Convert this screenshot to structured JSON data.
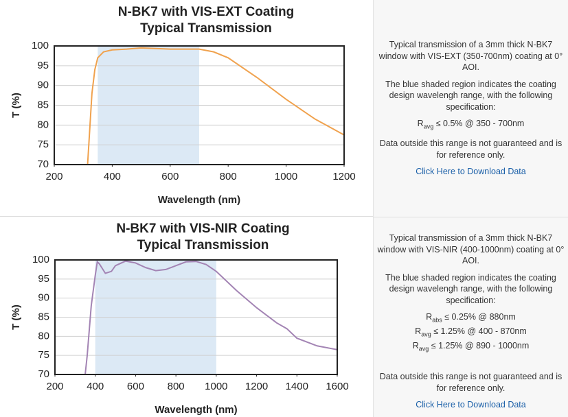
{
  "chart_data": [
    {
      "type": "line",
      "title": "N-BK7 with VIS-EXT Coating",
      "subtitle": "Typical Transmission",
      "x_label": "Wavelength (nm)",
      "y_label": "T (%)",
      "xlim": [
        200,
        1200
      ],
      "xticks": [
        200,
        400,
        600,
        800,
        1000,
        1200
      ],
      "ylim": [
        70,
        100
      ],
      "yticks": [
        70,
        75,
        80,
        85,
        90,
        95,
        100
      ],
      "grid": true,
      "shade": [
        350,
        700
      ],
      "shade_color": "#dce9f5",
      "x": [
        315,
        320,
        330,
        340,
        350,
        370,
        400,
        450,
        500,
        600,
        700,
        750,
        800,
        900,
        1000,
        1100,
        1200
      ],
      "series": [
        {
          "color": "#f0a24e",
          "values": [
            70,
            76,
            88,
            94,
            97,
            98.5,
            99,
            99.2,
            99.5,
            99.2,
            99.2,
            98.5,
            97,
            92,
            86.5,
            81.5,
            77.5
          ]
        }
      ]
    },
    {
      "type": "line",
      "title": "N-BK7 with VIS-NIR Coating",
      "subtitle": "Typical Transmission",
      "x_label": "Wavelength (nm)",
      "y_label": "T (%)",
      "xlim": [
        200,
        1600
      ],
      "xticks": [
        200,
        400,
        600,
        800,
        1000,
        1200,
        1400,
        1600
      ],
      "ylim": [
        70,
        100
      ],
      "yticks": [
        70,
        75,
        80,
        85,
        90,
        95,
        100
      ],
      "grid": true,
      "shade": [
        400,
        1000
      ],
      "shade_color": "#dce9f5",
      "x": [
        350,
        360,
        380,
        400,
        410,
        420,
        450,
        480,
        500,
        550,
        600,
        650,
        700,
        750,
        800,
        850,
        900,
        950,
        1000,
        1100,
        1200,
        1300,
        1350,
        1400,
        1500,
        1600
      ],
      "series": [
        {
          "color": "#a384b4",
          "values": [
            70,
            75,
            88,
            96,
            99.5,
            99,
            96.5,
            97,
            98.5,
            99.7,
            99.2,
            98,
            97.2,
            97.5,
            98.5,
            99.5,
            99.6,
            98.8,
            97,
            92,
            87.5,
            83.5,
            82,
            79.5,
            77.5,
            76.5
          ]
        }
      ]
    }
  ],
  "panels": [
    {
      "intro": "Typical transmission of a 3mm thick N-BK7 window with VIS-EXT (350-700nm) coating at 0° AOI.",
      "shading_note": "The blue shaded region indicates the coating design wavelengh range, with the following specification:",
      "specs": [
        {
          "symbol": "R",
          "sub": "avg",
          "text": "≤ 0.5% @ 350 - 700nm"
        }
      ],
      "disclaimer": "Data outside this range is not guaranteed and is for reference only.",
      "link": "Click Here to Download Data"
    },
    {
      "intro": "Typical transmission of a 3mm thick N-BK7 window with VIS-NIR (400-1000nm) coating at 0° AOI.",
      "shading_note": "The blue shaded region indicates the coating design wavelengh range, with the following specification:",
      "specs": [
        {
          "symbol": "R",
          "sub": "abs",
          "text": "≤ 0.25% @ 880nm"
        },
        {
          "symbol": "R",
          "sub": "avg",
          "text": "≤ 1.25% @ 400 - 870nm"
        },
        {
          "symbol": "R",
          "sub": "avg",
          "text": "≤ 1.25% @ 890 - 1000nm"
        }
      ],
      "disclaimer": "Data outside this range is not guaranteed and is for reference only.",
      "link": "Click Here to Download Data"
    }
  ]
}
